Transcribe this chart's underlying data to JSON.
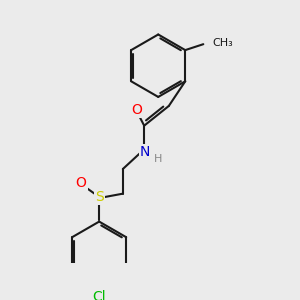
{
  "background_color": "#ebebeb",
  "bond_color": "#1a1a1a",
  "atom_colors": {
    "O": "#ff0000",
    "N": "#0000cc",
    "H": "#888888",
    "S": "#cccc00",
    "Cl": "#00bb00",
    "C": "#1a1a1a"
  },
  "bond_width": 1.5,
  "font_size_atom": 10,
  "font_size_small": 8,
  "font_size_ch3": 8
}
